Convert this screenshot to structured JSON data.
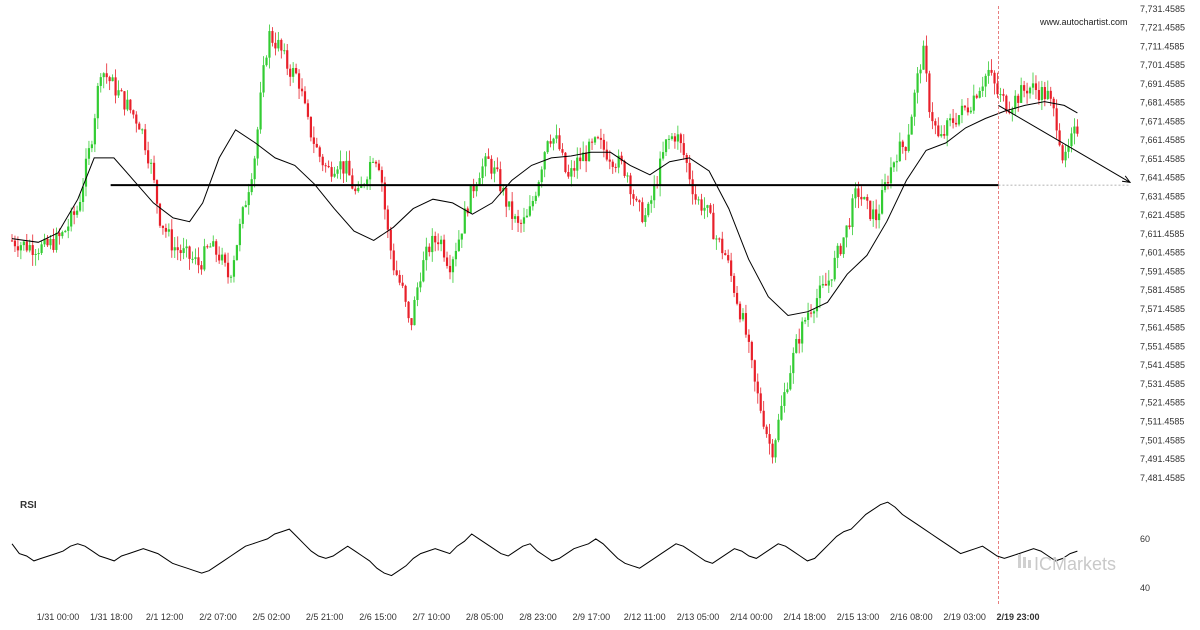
{
  "chart_data": [
    {
      "type": "candlestick",
      "y_ticks": [
        "7,731.4585",
        "7,721.4585",
        "7,711.4585",
        "7,701.4585",
        "7,691.4585",
        "7,681.4585",
        "7,671.4585",
        "7,661.4585",
        "7,651.4585",
        "7,641.4585",
        "7,631.4585",
        "7,621.4585",
        "7,611.4585",
        "7,601.4585",
        "7,591.4585",
        "7,581.4585",
        "7,571.4585",
        "7,561.4585",
        "7,551.4585",
        "7,541.4585",
        "7,531.4585",
        "7,521.4585",
        "7,511.4585",
        "7,501.4585",
        "7,491.4585",
        "7,481.4585"
      ],
      "y_tick_values": [
        7731.4585,
        7721.4585,
        7711.4585,
        7701.4585,
        7691.4585,
        7681.4585,
        7671.4585,
        7661.4585,
        7651.4585,
        7641.4585,
        7631.4585,
        7621.4585,
        7611.4585,
        7601.4585,
        7591.4585,
        7581.4585,
        7571.4585,
        7561.4585,
        7551.4585,
        7541.4585,
        7531.4585,
        7521.4585,
        7511.4585,
        7501.4585,
        7491.4585,
        7481.4585
      ],
      "ylim": [
        7476.0,
        7733.0
      ],
      "x_ticks": [
        "1/31 00:00",
        "1/31 18:00",
        "2/1 12:00",
        "2/2 07:00",
        "2/5 02:00",
        "2/5 21:00",
        "2/6 15:00",
        "2/7 10:00",
        "2/8 05:00",
        "2/8 23:00",
        "2/9 17:00",
        "2/12 11:00",
        "2/13 05:00",
        "2/14 00:00",
        "2/14 18:00",
        "2/15 13:00",
        "2/16 08:00",
        "2/19 03:00",
        "2/19 23:00"
      ],
      "candle_colors": {
        "up": "#33cc33",
        "down": "#e8202a"
      },
      "price_path": [
        [
          0,
          7608
        ],
        [
          5,
          7605
        ],
        [
          10,
          7604
        ],
        [
          15,
          7610
        ],
        [
          20,
          7625
        ],
        [
          24,
          7660
        ],
        [
          27,
          7700
        ],
        [
          31,
          7690
        ],
        [
          35,
          7680
        ],
        [
          39,
          7670
        ],
        [
          42,
          7650
        ],
        [
          45,
          7620
        ],
        [
          49,
          7605
        ],
        [
          53,
          7600
        ],
        [
          57,
          7595
        ],
        [
          60,
          7605
        ],
        [
          63,
          7600
        ],
        [
          66,
          7588
        ],
        [
          70,
          7620
        ],
        [
          74,
          7655
        ],
        [
          76,
          7690
        ],
        [
          78,
          7718
        ],
        [
          81,
          7712
        ],
        [
          84,
          7700
        ],
        [
          87,
          7695
        ],
        [
          90,
          7670
        ],
        [
          93,
          7655
        ],
        [
          96,
          7645
        ],
        [
          99,
          7650
        ],
        [
          102,
          7645
        ],
        [
          105,
          7630
        ],
        [
          107,
          7640
        ],
        [
          110,
          7655
        ],
        [
          112,
          7648
        ],
        [
          114,
          7615
        ],
        [
          116,
          7595
        ],
        [
          119,
          7580
        ],
        [
          121,
          7560
        ],
        [
          124,
          7590
        ],
        [
          127,
          7605
        ],
        [
          130,
          7610
        ],
        [
          133,
          7595
        ],
        [
          136,
          7610
        ],
        [
          139,
          7630
        ],
        [
          142,
          7645
        ],
        [
          145,
          7650
        ],
        [
          148,
          7640
        ],
        [
          151,
          7625
        ],
        [
          154,
          7615
        ],
        [
          157,
          7620
        ],
        [
          160,
          7640
        ],
        [
          163,
          7665
        ],
        [
          166,
          7660
        ],
        [
          169,
          7640
        ],
        [
          172,
          7650
        ],
        [
          175,
          7655
        ],
        [
          178,
          7660
        ],
        [
          181,
          7655
        ],
        [
          184,
          7650
        ],
        [
          187,
          7645
        ],
        [
          190,
          7625
        ],
        [
          193,
          7620
        ],
        [
          196,
          7640
        ],
        [
          199,
          7660
        ],
        [
          202,
          7665
        ],
        [
          205,
          7650
        ],
        [
          208,
          7630
        ],
        [
          211,
          7625
        ],
        [
          214,
          7610
        ],
        [
          217,
          7600
        ],
        [
          220,
          7580
        ],
        [
          223,
          7560
        ],
        [
          226,
          7530
        ],
        [
          229,
          7510
        ],
        [
          231,
          7495
        ],
        [
          233,
          7510
        ],
        [
          236,
          7535
        ],
        [
          239,
          7555
        ],
        [
          242,
          7570
        ],
        [
          245,
          7578
        ],
        [
          248,
          7585
        ],
        [
          251,
          7600
        ],
        [
          254,
          7615
        ],
        [
          257,
          7635
        ],
        [
          260,
          7625
        ],
        [
          263,
          7620
        ],
        [
          266,
          7640
        ],
        [
          269,
          7655
        ],
        [
          272,
          7660
        ],
        [
          275,
          7690
        ],
        [
          277,
          7710
        ],
        [
          279,
          7680
        ],
        [
          282,
          7660
        ],
        [
          285,
          7670
        ],
        [
          288,
          7675
        ],
        [
          291,
          7680
        ],
        [
          294,
          7690
        ],
        [
          297,
          7698
        ],
        [
          300,
          7685
        ],
        [
          303,
          7680
        ],
        [
          306,
          7685
        ],
        [
          309,
          7690
        ],
        [
          312,
          7688
        ],
        [
          315,
          7685
        ],
        [
          318,
          7670
        ],
        [
          320,
          7648
        ],
        [
          322,
          7660
        ],
        [
          324,
          7668
        ]
      ],
      "path_x_max": 324,
      "moving_average": [
        [
          0,
          7609
        ],
        [
          8,
          7607
        ],
        [
          14,
          7612
        ],
        [
          20,
          7630
        ],
        [
          25,
          7652
        ],
        [
          31,
          7652
        ],
        [
          37,
          7640
        ],
        [
          43,
          7628
        ],
        [
          49,
          7620
        ],
        [
          54,
          7618
        ],
        [
          58,
          7628
        ],
        [
          63,
          7652
        ],
        [
          68,
          7667
        ],
        [
          74,
          7660
        ],
        [
          80,
          7652
        ],
        [
          86,
          7648
        ],
        [
          92,
          7638
        ],
        [
          98,
          7625
        ],
        [
          104,
          7613
        ],
        [
          110,
          7608
        ],
        [
          116,
          7615
        ],
        [
          122,
          7625
        ],
        [
          128,
          7630
        ],
        [
          134,
          7628
        ],
        [
          140,
          7622
        ],
        [
          146,
          7628
        ],
        [
          152,
          7640
        ],
        [
          158,
          7648
        ],
        [
          164,
          7652
        ],
        [
          170,
          7653
        ],
        [
          176,
          7655
        ],
        [
          182,
          7655
        ],
        [
          188,
          7648
        ],
        [
          194,
          7643
        ],
        [
          200,
          7650
        ],
        [
          206,
          7652
        ],
        [
          212,
          7645
        ],
        [
          218,
          7625
        ],
        [
          224,
          7598
        ],
        [
          230,
          7578
        ],
        [
          236,
          7568
        ],
        [
          242,
          7570
        ],
        [
          248,
          7575
        ],
        [
          254,
          7590
        ],
        [
          260,
          7600
        ],
        [
          266,
          7618
        ],
        [
          272,
          7640
        ],
        [
          278,
          7656
        ],
        [
          284,
          7660
        ],
        [
          290,
          7668
        ],
        [
          296,
          7673
        ],
        [
          302,
          7677
        ],
        [
          308,
          7680
        ],
        [
          314,
          7682
        ],
        [
          320,
          7680
        ],
        [
          324,
          7676
        ]
      ],
      "support_level": 7637.5,
      "support_x_range": [
        30,
        300
      ],
      "forecast": {
        "from": [
          300,
          7680
        ],
        "to": [
          340,
          7639
        ]
      },
      "current_marker_x": 300,
      "line_colors": {
        "support": "#000000",
        "ma": "#000000",
        "forecast": "#000000",
        "marker": "#e06060"
      }
    },
    {
      "type": "line",
      "panel_title": "RSI",
      "y_ticks": [
        "60",
        "40"
      ],
      "y_tick_values": [
        60,
        40
      ],
      "ylim": [
        35,
        80
      ],
      "values": [
        58,
        54,
        53,
        51,
        52,
        53,
        54,
        55,
        57,
        58,
        57,
        55,
        53,
        52,
        51,
        53,
        54,
        55,
        56,
        55,
        54,
        52,
        50,
        49,
        48,
        47,
        46,
        47,
        49,
        51,
        53,
        55,
        57,
        58,
        59,
        60,
        62,
        63,
        64,
        61,
        58,
        55,
        53,
        52,
        53,
        55,
        57,
        55,
        53,
        51,
        48,
        46,
        45,
        47,
        49,
        52,
        54,
        55,
        56,
        55,
        54,
        57,
        59,
        62,
        60,
        58,
        56,
        54,
        53,
        55,
        57,
        58,
        55,
        53,
        51,
        52,
        54,
        56,
        57,
        58,
        60,
        58,
        55,
        52,
        50,
        49,
        48,
        50,
        52,
        54,
        56,
        58,
        57,
        55,
        53,
        51,
        50,
        52,
        54,
        56,
        55,
        53,
        52,
        54,
        56,
        58,
        57,
        55,
        53,
        51,
        52,
        55,
        58,
        61,
        63,
        64,
        67,
        70,
        72,
        74,
        75,
        73,
        70,
        68,
        66,
        64,
        62,
        60,
        58,
        56,
        54,
        55,
        56,
        57,
        55,
        53,
        52,
        53,
        54,
        55,
        56,
        55,
        53,
        51,
        52,
        54,
        55
      ],
      "line_color": "#000000"
    }
  ],
  "watermark": "www.autochartist.com",
  "brand": "ICMarkets"
}
